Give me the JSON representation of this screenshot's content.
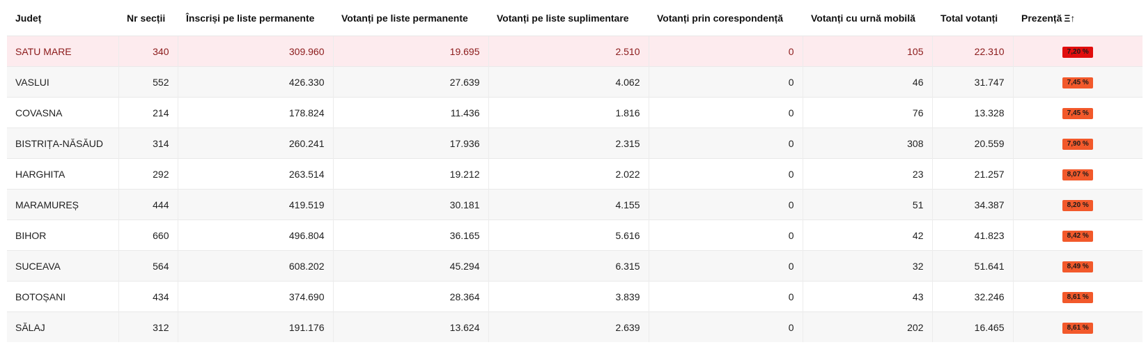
{
  "colors": {
    "badge_worst": "#e10d0d",
    "badge_low": "#f2592b",
    "highlight_row": "#fdebee",
    "highlight_text": "#8b1a1a"
  },
  "header": {
    "judet": "Județ",
    "nr_sectii": "Nr secții",
    "inscrisi": "Înscriși pe liste permanente",
    "votanti_permanente": "Votanți pe liste permanente",
    "votanti_suplimentare": "Votanți pe liste suplimentare",
    "votanti_corespondenta": "Votanți prin corespondență",
    "votanti_urna": "Votanți cu urnă mobilă",
    "total": "Total votanți",
    "prezenta": "Prezență",
    "sort_icon": "Ξ↑"
  },
  "rows": [
    {
      "judet": "SATU MARE",
      "nr_sectii": "340",
      "inscrisi": "309.960",
      "votanti_permanente": "19.695",
      "votanti_suplimentare": "2.510",
      "votanti_corespondenta": "0",
      "votanti_urna": "105",
      "total": "22.310",
      "prezenta": "7,20 %",
      "highlight": true,
      "badge_color": "#e10d0d"
    },
    {
      "judet": "VASLUI",
      "nr_sectii": "552",
      "inscrisi": "426.330",
      "votanti_permanente": "27.639",
      "votanti_suplimentare": "4.062",
      "votanti_corespondenta": "0",
      "votanti_urna": "46",
      "total": "31.747",
      "prezenta": "7,45 %",
      "highlight": false,
      "badge_color": "#f2592b"
    },
    {
      "judet": "COVASNA",
      "nr_sectii": "214",
      "inscrisi": "178.824",
      "votanti_permanente": "11.436",
      "votanti_suplimentare": "1.816",
      "votanti_corespondenta": "0",
      "votanti_urna": "76",
      "total": "13.328",
      "prezenta": "7,45 %",
      "highlight": false,
      "badge_color": "#f2592b"
    },
    {
      "judet": "BISTRIȚA-NĂSĂUD",
      "nr_sectii": "314",
      "inscrisi": "260.241",
      "votanti_permanente": "17.936",
      "votanti_suplimentare": "2.315",
      "votanti_corespondenta": "0",
      "votanti_urna": "308",
      "total": "20.559",
      "prezenta": "7,90 %",
      "highlight": false,
      "badge_color": "#f2592b"
    },
    {
      "judet": "HARGHITA",
      "nr_sectii": "292",
      "inscrisi": "263.514",
      "votanti_permanente": "19.212",
      "votanti_suplimentare": "2.022",
      "votanti_corespondenta": "0",
      "votanti_urna": "23",
      "total": "21.257",
      "prezenta": "8,07 %",
      "highlight": false,
      "badge_color": "#f2592b"
    },
    {
      "judet": "MARAMUREȘ",
      "nr_sectii": "444",
      "inscrisi": "419.519",
      "votanti_permanente": "30.181",
      "votanti_suplimentare": "4.155",
      "votanti_corespondenta": "0",
      "votanti_urna": "51",
      "total": "34.387",
      "prezenta": "8,20 %",
      "highlight": false,
      "badge_color": "#f2592b"
    },
    {
      "judet": "BIHOR",
      "nr_sectii": "660",
      "inscrisi": "496.804",
      "votanti_permanente": "36.165",
      "votanti_suplimentare": "5.616",
      "votanti_corespondenta": "0",
      "votanti_urna": "42",
      "total": "41.823",
      "prezenta": "8,42 %",
      "highlight": false,
      "badge_color": "#f2592b"
    },
    {
      "judet": "SUCEAVA",
      "nr_sectii": "564",
      "inscrisi": "608.202",
      "votanti_permanente": "45.294",
      "votanti_suplimentare": "6.315",
      "votanti_corespondenta": "0",
      "votanti_urna": "32",
      "total": "51.641",
      "prezenta": "8,49 %",
      "highlight": false,
      "badge_color": "#f2592b"
    },
    {
      "judet": "BOTOȘANI",
      "nr_sectii": "434",
      "inscrisi": "374.690",
      "votanti_permanente": "28.364",
      "votanti_suplimentare": "3.839",
      "votanti_corespondenta": "0",
      "votanti_urna": "43",
      "total": "32.246",
      "prezenta": "8,61 %",
      "highlight": false,
      "badge_color": "#f2592b"
    },
    {
      "judet": "SĂLAJ",
      "nr_sectii": "312",
      "inscrisi": "191.176",
      "votanti_permanente": "13.624",
      "votanti_suplimentare": "2.639",
      "votanti_corespondenta": "0",
      "votanti_urna": "202",
      "total": "16.465",
      "prezenta": "8,61 %",
      "highlight": false,
      "badge_color": "#f2592b"
    }
  ]
}
